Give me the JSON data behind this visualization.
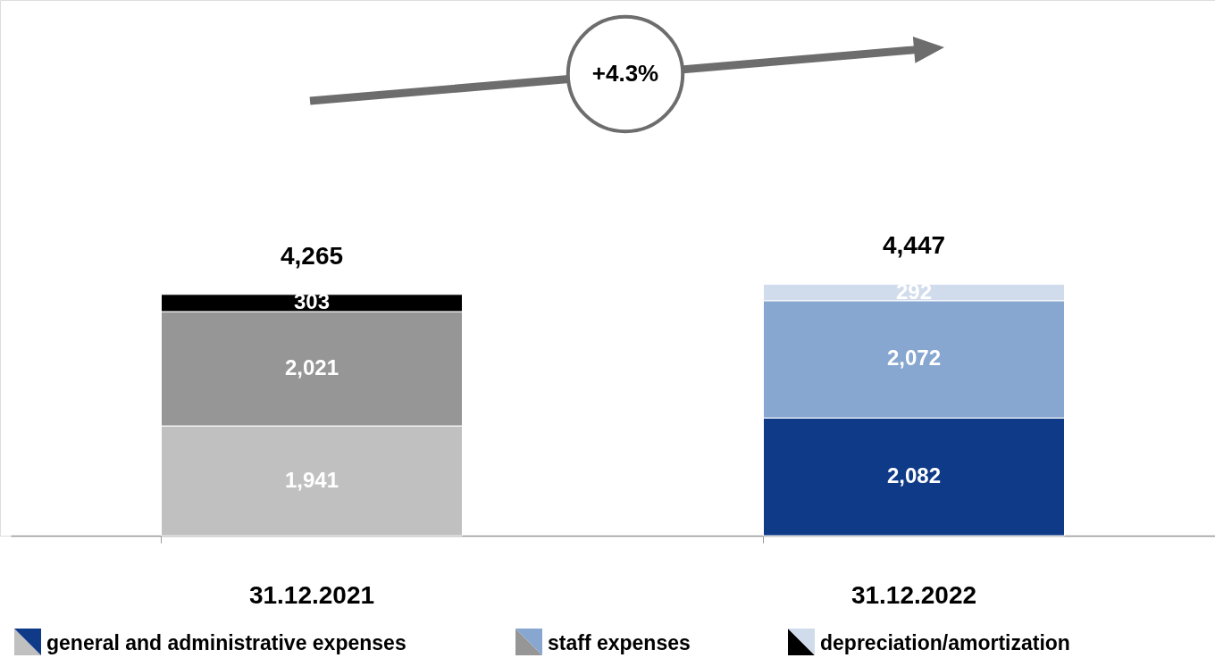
{
  "chart_data": {
    "type": "bar",
    "stacked": true,
    "legend": "bottom",
    "categories": [
      "31.12.2021",
      "31.12.2022"
    ],
    "series": [
      {
        "name": "general and administrative expenses",
        "colors": [
          "#c0c0c0",
          "#0f3a87"
        ],
        "values": [
          1941,
          2082
        ],
        "value_labels": [
          "1,941",
          "2,082"
        ]
      },
      {
        "name": "staff expenses",
        "colors": [
          "#969696",
          "#87a7d0"
        ],
        "values": [
          2021,
          2072
        ],
        "value_labels": [
          "2,021",
          "2,072"
        ]
      },
      {
        "name": "depreciation/amortization",
        "colors": [
          "#000000",
          "#d0dcec"
        ],
        "values": [
          303,
          292
        ],
        "value_labels": [
          "303",
          "292"
        ]
      }
    ],
    "totals": [
      "4,265",
      "4,447"
    ],
    "annotations": [
      "+4.3%"
    ]
  }
}
